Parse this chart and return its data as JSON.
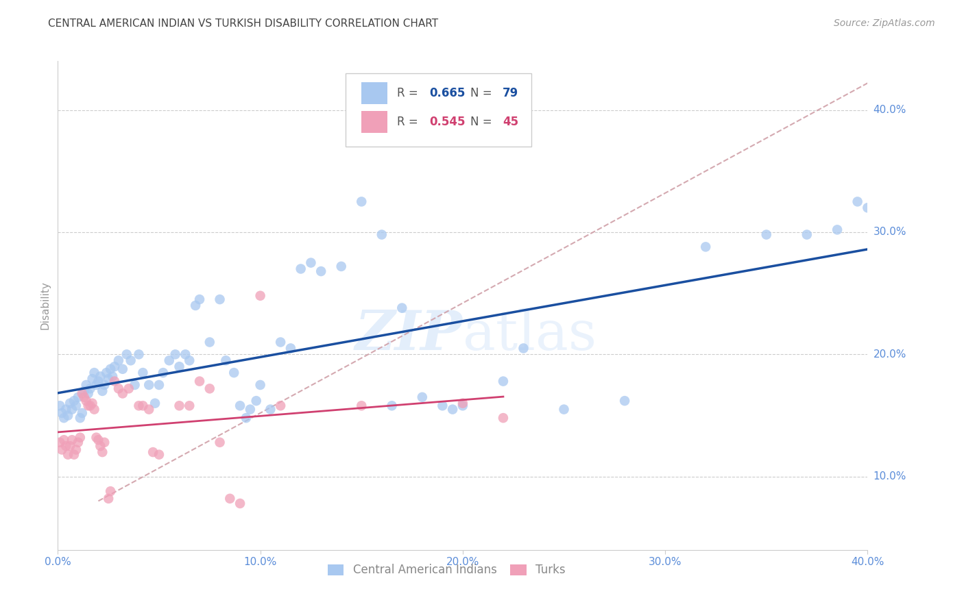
{
  "title": "CENTRAL AMERICAN INDIAN VS TURKISH DISABILITY CORRELATION CHART",
  "source": "Source: ZipAtlas.com",
  "ylabel": "Disability",
  "xlim": [
    0.0,
    0.4
  ],
  "ylim": [
    0.04,
    0.44
  ],
  "xticks": [
    0.0,
    0.1,
    0.2,
    0.3,
    0.4
  ],
  "ytick_positions": [
    0.1,
    0.2,
    0.3,
    0.4
  ],
  "xlabel_labels": [
    "0.0%",
    "10.0%",
    "20.0%",
    "30.0%",
    "40.0%"
  ],
  "ylabel_labels": [
    "10.0%",
    "20.0%",
    "30.0%",
    "40.0%"
  ],
  "background_color": "#ffffff",
  "grid_color": "#cccccc",
  "title_color": "#444444",
  "axis_label_color": "#5b8dd9",
  "blue_scatter_color": "#a8c8f0",
  "pink_scatter_color": "#f0a0b8",
  "blue_line_color": "#1a4fa0",
  "pink_line_color": "#d04070",
  "diagonal_line_color": "#d0a0a8",
  "watermark_color": "#ddeeff",
  "blue_points": [
    [
      0.001,
      0.158
    ],
    [
      0.002,
      0.152
    ],
    [
      0.003,
      0.148
    ],
    [
      0.004,
      0.155
    ],
    [
      0.005,
      0.15
    ],
    [
      0.006,
      0.16
    ],
    [
      0.007,
      0.155
    ],
    [
      0.008,
      0.162
    ],
    [
      0.009,
      0.158
    ],
    [
      0.01,
      0.165
    ],
    [
      0.011,
      0.148
    ],
    [
      0.012,
      0.152
    ],
    [
      0.013,
      0.17
    ],
    [
      0.014,
      0.175
    ],
    [
      0.015,
      0.168
    ],
    [
      0.016,
      0.172
    ],
    [
      0.017,
      0.18
    ],
    [
      0.018,
      0.185
    ],
    [
      0.019,
      0.175
    ],
    [
      0.02,
      0.178
    ],
    [
      0.021,
      0.182
    ],
    [
      0.022,
      0.17
    ],
    [
      0.023,
      0.175
    ],
    [
      0.024,
      0.185
    ],
    [
      0.025,
      0.18
    ],
    [
      0.026,
      0.188
    ],
    [
      0.027,
      0.182
    ],
    [
      0.028,
      0.19
    ],
    [
      0.03,
      0.195
    ],
    [
      0.032,
      0.188
    ],
    [
      0.034,
      0.2
    ],
    [
      0.036,
      0.195
    ],
    [
      0.038,
      0.175
    ],
    [
      0.04,
      0.2
    ],
    [
      0.042,
      0.185
    ],
    [
      0.045,
      0.175
    ],
    [
      0.048,
      0.16
    ],
    [
      0.05,
      0.175
    ],
    [
      0.052,
      0.185
    ],
    [
      0.055,
      0.195
    ],
    [
      0.058,
      0.2
    ],
    [
      0.06,
      0.19
    ],
    [
      0.063,
      0.2
    ],
    [
      0.065,
      0.195
    ],
    [
      0.068,
      0.24
    ],
    [
      0.07,
      0.245
    ],
    [
      0.075,
      0.21
    ],
    [
      0.08,
      0.245
    ],
    [
      0.083,
      0.195
    ],
    [
      0.087,
      0.185
    ],
    [
      0.09,
      0.158
    ],
    [
      0.093,
      0.148
    ],
    [
      0.095,
      0.155
    ],
    [
      0.098,
      0.162
    ],
    [
      0.1,
      0.175
    ],
    [
      0.105,
      0.155
    ],
    [
      0.11,
      0.21
    ],
    [
      0.115,
      0.205
    ],
    [
      0.12,
      0.27
    ],
    [
      0.125,
      0.275
    ],
    [
      0.13,
      0.268
    ],
    [
      0.14,
      0.272
    ],
    [
      0.15,
      0.325
    ],
    [
      0.16,
      0.298
    ],
    [
      0.165,
      0.158
    ],
    [
      0.17,
      0.238
    ],
    [
      0.18,
      0.165
    ],
    [
      0.19,
      0.158
    ],
    [
      0.195,
      0.155
    ],
    [
      0.2,
      0.158
    ],
    [
      0.22,
      0.178
    ],
    [
      0.23,
      0.205
    ],
    [
      0.25,
      0.155
    ],
    [
      0.28,
      0.162
    ],
    [
      0.32,
      0.288
    ],
    [
      0.35,
      0.298
    ],
    [
      0.37,
      0.298
    ],
    [
      0.385,
      0.302
    ],
    [
      0.395,
      0.325
    ],
    [
      0.4,
      0.32
    ]
  ],
  "pink_points": [
    [
      0.001,
      0.128
    ],
    [
      0.002,
      0.122
    ],
    [
      0.003,
      0.13
    ],
    [
      0.004,
      0.125
    ],
    [
      0.005,
      0.118
    ],
    [
      0.006,
      0.125
    ],
    [
      0.007,
      0.13
    ],
    [
      0.008,
      0.118
    ],
    [
      0.009,
      0.122
    ],
    [
      0.01,
      0.128
    ],
    [
      0.011,
      0.132
    ],
    [
      0.012,
      0.168
    ],
    [
      0.013,
      0.165
    ],
    [
      0.014,
      0.162
    ],
    [
      0.015,
      0.158
    ],
    [
      0.016,
      0.158
    ],
    [
      0.017,
      0.16
    ],
    [
      0.018,
      0.155
    ],
    [
      0.019,
      0.132
    ],
    [
      0.02,
      0.13
    ],
    [
      0.021,
      0.125
    ],
    [
      0.022,
      0.12
    ],
    [
      0.023,
      0.128
    ],
    [
      0.025,
      0.082
    ],
    [
      0.026,
      0.088
    ],
    [
      0.028,
      0.178
    ],
    [
      0.03,
      0.172
    ],
    [
      0.032,
      0.168
    ],
    [
      0.035,
      0.172
    ],
    [
      0.04,
      0.158
    ],
    [
      0.042,
      0.158
    ],
    [
      0.045,
      0.155
    ],
    [
      0.047,
      0.12
    ],
    [
      0.05,
      0.118
    ],
    [
      0.06,
      0.158
    ],
    [
      0.065,
      0.158
    ],
    [
      0.07,
      0.178
    ],
    [
      0.075,
      0.172
    ],
    [
      0.08,
      0.128
    ],
    [
      0.085,
      0.082
    ],
    [
      0.09,
      0.078
    ],
    [
      0.1,
      0.248
    ],
    [
      0.11,
      0.158
    ],
    [
      0.15,
      0.158
    ],
    [
      0.2,
      0.16
    ],
    [
      0.22,
      0.148
    ]
  ]
}
